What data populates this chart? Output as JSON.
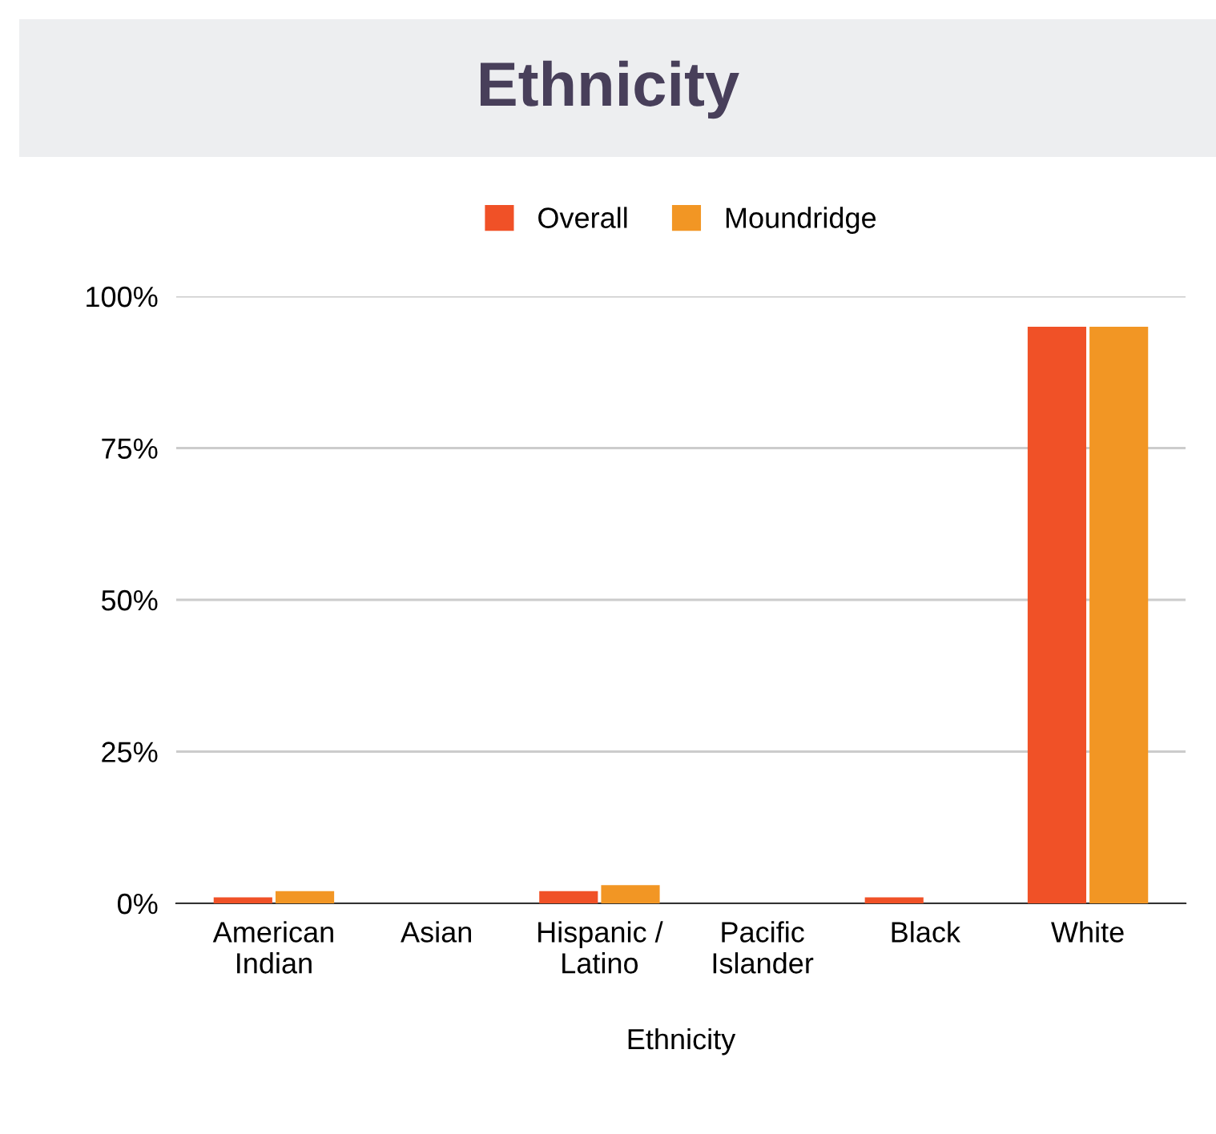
{
  "chart_data": {
    "type": "bar",
    "title": "Ethnicity",
    "xlabel": "Ethnicity",
    "categories": [
      "American\nIndian",
      "Asian",
      "Hispanic /\nLatino",
      "Pacific\nIslander",
      "Black",
      "White"
    ],
    "series": [
      {
        "name": "Overall",
        "color": "#f05127",
        "values": [
          1,
          0,
          2,
          0,
          1,
          95
        ]
      },
      {
        "name": "Moundridge",
        "color": "#f29624",
        "values": [
          2,
          0,
          3,
          0,
          0,
          95
        ]
      }
    ],
    "ylim": [
      0,
      100
    ],
    "yticks": [
      {
        "value": 0,
        "label": "0%"
      },
      {
        "value": 25,
        "label": "25%"
      },
      {
        "value": 50,
        "label": "50%"
      },
      {
        "value": 75,
        "label": "75%"
      },
      {
        "value": 100,
        "label": "100%"
      }
    ],
    "grid": "y",
    "legend": "top"
  }
}
